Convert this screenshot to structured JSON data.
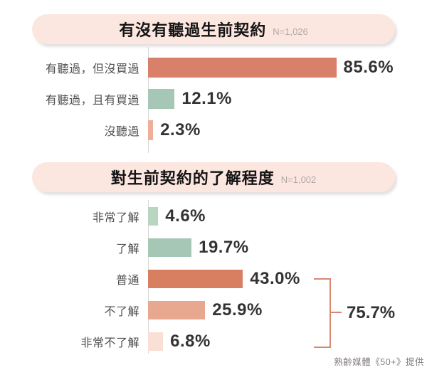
{
  "charts": [
    {
      "title": "有沒有聽過生前契約",
      "sample": "N=1,026",
      "rows": [
        {
          "label": "有聽過，但沒買過",
          "value": 85.6,
          "display": "85.6%",
          "color": "#d9806b"
        },
        {
          "label": "有聽過，且有買過",
          "value": 12.1,
          "display": "12.1%",
          "color": "#a6c7b5"
        },
        {
          "label": "沒聽過",
          "value": 2.3,
          "display": "2.3%",
          "color": "#efae9a"
        }
      ]
    },
    {
      "title": "對生前契約的了解程度",
      "sample": "N=1,002",
      "rows": [
        {
          "label": "非常了解",
          "value": 4.6,
          "display": "4.6%",
          "color": "#b8d5c2"
        },
        {
          "label": "了解",
          "value": 19.7,
          "display": "19.7%",
          "color": "#a6c7b5"
        },
        {
          "label": "普通",
          "value": 43.0,
          "display": "43.0%",
          "color": "#d87f62"
        },
        {
          "label": "不了解",
          "value": 25.9,
          "display": "25.9%",
          "color": "#e8a88f"
        },
        {
          "label": "非常不了解",
          "value": 6.8,
          "display": "6.8%",
          "color": "#fadfd4"
        }
      ],
      "bracket": {
        "label": "75.7%",
        "color": "#d9886f",
        "covers": [
          "普通",
          "不了解",
          "非常不了解"
        ]
      }
    }
  ],
  "credit": "熟齡媒體《50+》提供",
  "colors": {
    "banner_bg": "#fce6e0",
    "axis": "#d8d8d8",
    "text_dark": "#333333",
    "text_label": "#4f4f4f",
    "text_muted": "#b1a8a8"
  },
  "chart_data": [
    {
      "type": "bar",
      "orientation": "horizontal",
      "title": "有沒有聽過生前契約",
      "sample_size": "N=1,026",
      "categories": [
        "有聽過，但沒買過",
        "有聽過，且有買過",
        "沒聽過"
      ],
      "values": [
        85.6,
        12.1,
        2.3
      ],
      "unit": "%",
      "xlim": [
        0,
        100
      ],
      "grid": false,
      "legend": false,
      "bar_colors": [
        "#d9806b",
        "#a6c7b5",
        "#efae9a"
      ]
    },
    {
      "type": "bar",
      "orientation": "horizontal",
      "title": "對生前契約的了解程度",
      "sample_size": "N=1,002",
      "categories": [
        "非常了解",
        "了解",
        "普通",
        "不了解",
        "非常不了解"
      ],
      "values": [
        4.6,
        19.7,
        43.0,
        25.9,
        6.8
      ],
      "unit": "%",
      "xlim": [
        0,
        100
      ],
      "grid": false,
      "legend": false,
      "bar_colors": [
        "#b8d5c2",
        "#a6c7b5",
        "#d87f62",
        "#e8a88f",
        "#fadfd4"
      ],
      "annotations": [
        {
          "label": "75.7%",
          "covers": [
            "普通",
            "不了解",
            "非常不了解"
          ],
          "position": "right-bracket"
        }
      ]
    }
  ]
}
